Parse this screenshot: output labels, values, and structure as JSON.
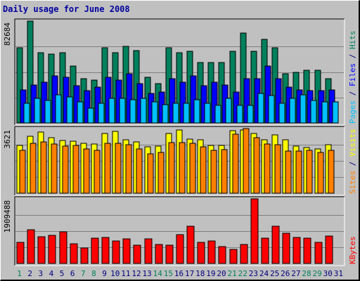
{
  "chart_data": {
    "title": "Daily usage for June 2008",
    "categories": [
      "1",
      "2",
      "3",
      "4",
      "5",
      "6",
      "7",
      "8",
      "9",
      "10",
      "11",
      "12",
      "13",
      "14",
      "15",
      "16",
      "17",
      "18",
      "19",
      "20",
      "21",
      "22",
      "23",
      "24",
      "25",
      "26",
      "27",
      "28",
      "29",
      "30",
      "31"
    ],
    "weekend_days": [
      "1",
      "7",
      "8",
      "14",
      "15",
      "21",
      "22",
      "28",
      "29"
    ],
    "colors": {
      "hits": "#00805c",
      "files": "#0000ff",
      "pages": "#00c0ff",
      "visits": "#ffff00",
      "sites": "#ff8000",
      "kbytes": "#ff0000",
      "weekday_label": "#000080",
      "weekend_label": "#00805c"
    },
    "panels": [
      {
        "type": "bar",
        "ylabel_max": "82684",
        "ymax": 82684,
        "legend": [
          {
            "text": "Pages",
            "color": "#00c0ff"
          },
          {
            "text": " / ",
            "color": "#000080"
          },
          {
            "text": "Files",
            "color": "#0000ff"
          },
          {
            "text": " / ",
            "color": "#000080"
          },
          {
            "text": "Hits",
            "color": "#00805c"
          }
        ],
        "series": [
          {
            "name": "Hits",
            "color": "#00805c",
            "values": [
              61000,
              82684,
              57000,
              56000,
              57000,
              46000,
              36000,
              35000,
              61000,
              57000,
              62000,
              59000,
              37000,
              32000,
              61000,
              57000,
              58000,
              49000,
              49000,
              49000,
              58000,
              73000,
              58000,
              68000,
              61000,
              40000,
              41000,
              43000,
              43000,
              36000,
              0
            ]
          },
          {
            "name": "Files",
            "color": "#0000ff",
            "values": [
              27000,
              31000,
              33000,
              38000,
              37000,
              30000,
              26000,
              29000,
              37000,
              35000,
              40000,
              32000,
              24000,
              25000,
              36000,
              33000,
              38000,
              30000,
              33000,
              31000,
              25000,
              36000,
              36000,
              46000,
              36000,
              29000,
              27000,
              26000,
              26000,
              27000,
              0
            ]
          },
          {
            "name": "Pages",
            "color": "#00c0ff",
            "values": [
              16000,
              20000,
              18000,
              23000,
              21000,
              17000,
              12000,
              16000,
              20000,
              20000,
              19000,
              20000,
              17000,
              15000,
              16000,
              16000,
              19000,
              16000,
              14000,
              20000,
              14000,
              14000,
              24000,
              22000,
              16000,
              20000,
              23000,
              18000,
              17000,
              17000,
              0
            ]
          }
        ]
      },
      {
        "type": "bar",
        "ylabel_max": "3621",
        "ymax": 3621,
        "legend": [
          {
            "text": "Sites",
            "color": "#ff8000"
          },
          {
            "text": " / ",
            "color": "#000080"
          },
          {
            "text": "Visits",
            "color": "#ffff00"
          }
        ],
        "series": [
          {
            "name": "Visits",
            "color": "#ffff00",
            "values": [
              2690,
              3180,
              3410,
              3100,
              2950,
              2920,
              2780,
              2750,
              3340,
              3470,
              3000,
              2890,
              2600,
              2630,
              3350,
              3560,
              3030,
              2990,
              2680,
              2690,
              3500,
              3560,
              3360,
              3000,
              3280,
              2980,
              2650,
              2560,
              2470,
              2710,
              0
            ]
          },
          {
            "name": "Sites",
            "color": "#ff8000",
            "values": [
              2400,
              2780,
              2860,
              2750,
              2630,
              2680,
              2460,
              2420,
              2800,
              2800,
              2730,
              2490,
              2220,
              2280,
              2830,
              2850,
              2790,
              2610,
              2400,
              2440,
              3320,
              3620,
              3120,
              2750,
              2720,
              2380,
              2380,
              2400,
              2290,
              2420,
              0
            ]
          }
        ]
      },
      {
        "type": "bar",
        "ylabel_max": "1909488",
        "ymax": 1909488,
        "legend": [
          {
            "text": "KBytes",
            "color": "#ff0000"
          }
        ],
        "series": [
          {
            "name": "KBytes",
            "color": "#ff0000",
            "values": [
              620000,
              1000000,
              780000,
              820000,
              940000,
              590000,
              450000,
              740000,
              760000,
              660000,
              730000,
              530000,
              720000,
              570000,
              550000,
              850000,
              1090000,
              620000,
              660000,
              500000,
              420000,
              560000,
              1909488,
              740000,
              1090000,
              900000,
              760000,
              740000,
              620000,
              800000,
              0
            ]
          }
        ]
      }
    ]
  }
}
